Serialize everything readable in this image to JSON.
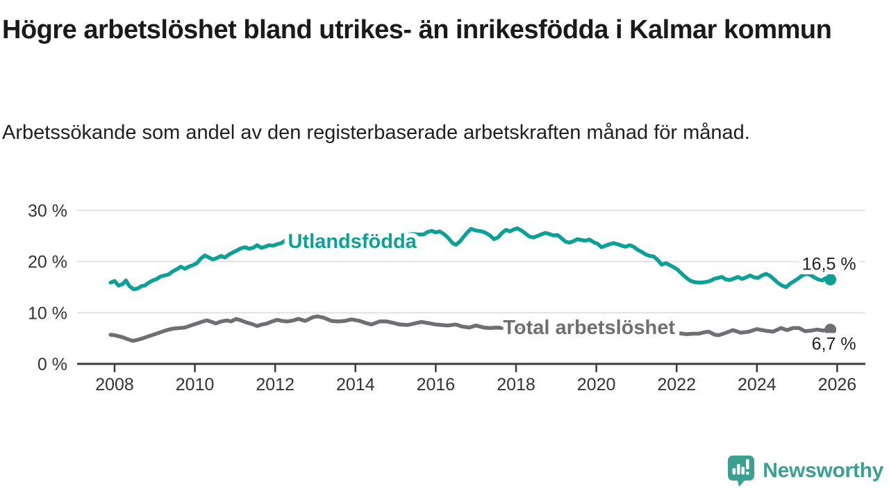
{
  "header": {
    "title": "Högre arbetslöshet bland utrikes- än inrikesfödda i Kalmar kommun",
    "subtitle": "Arbetssökande som andel av den registerbaserade arbetskraften månad för månad."
  },
  "branding": {
    "wordmark": "Newsworthy",
    "logo_icon": "bar-chart-exclamation-speech-bubble-icon",
    "color": "#3aa192"
  },
  "colors": {
    "series_foreign_born": "#0da096",
    "series_total": "#6f6f73",
    "gridline": "#e1e1e1",
    "axis": "#3c3c3c",
    "tick_label": "#333333",
    "value_label": "#1f1f1f"
  },
  "chart_data": {
    "type": "line",
    "title": "Högre arbetslöshet bland utrikes- än inrikesfödda i Kalmar kommun",
    "subtitle": "Arbetssökande som andel av den registerbaserade arbetskraften månad för månad.",
    "unit": "%",
    "grid": "horizontal",
    "legend_position": "inline-labels",
    "xlim": [
      2007.6,
      2026.7
    ],
    "ylim": [
      0,
      32
    ],
    "x_ticks": [
      2008,
      2010,
      2012,
      2014,
      2016,
      2018,
      2020,
      2022,
      2024,
      2026
    ],
    "x_tick_labels": [
      "2008",
      "2010",
      "2012",
      "2014",
      "2016",
      "2018",
      "2020",
      "2022",
      "2024",
      "2026"
    ],
    "y_ticks": [
      0,
      10,
      20,
      30
    ],
    "y_tick_labels": [
      "0 %",
      "10 %",
      "20 %",
      "30 %"
    ],
    "series": [
      {
        "name": "Utlandsfödda",
        "color": "#0da096",
        "inline_label": {
          "text": "Utlandsfödda",
          "x": 2013.92,
          "y": 24.0
        },
        "end_label": "16,5 %",
        "end_value": 16.5,
        "end_label_position": "above",
        "points": [
          [
            2007.9,
            15.9
          ],
          [
            2008.0,
            16.2
          ],
          [
            2008.1,
            15.3
          ],
          [
            2008.2,
            15.6
          ],
          [
            2008.28,
            16.3
          ],
          [
            2008.37,
            15.2
          ],
          [
            2008.47,
            14.6
          ],
          [
            2008.57,
            14.7
          ],
          [
            2008.67,
            15.2
          ],
          [
            2008.75,
            15.3
          ],
          [
            2008.85,
            15.9
          ],
          [
            2008.95,
            16.3
          ],
          [
            2009.05,
            16.6
          ],
          [
            2009.15,
            17.1
          ],
          [
            2009.25,
            17.3
          ],
          [
            2009.35,
            17.5
          ],
          [
            2009.45,
            18.1
          ],
          [
            2009.55,
            18.5
          ],
          [
            2009.65,
            19.0
          ],
          [
            2009.75,
            18.6
          ],
          [
            2009.85,
            19.0
          ],
          [
            2009.95,
            19.3
          ],
          [
            2010.05,
            19.7
          ],
          [
            2010.15,
            20.6
          ],
          [
            2010.25,
            21.2
          ],
          [
            2010.35,
            20.8
          ],
          [
            2010.45,
            20.4
          ],
          [
            2010.55,
            20.7
          ],
          [
            2010.65,
            21.1
          ],
          [
            2010.75,
            20.8
          ],
          [
            2010.85,
            21.4
          ],
          [
            2010.95,
            21.8
          ],
          [
            2011.05,
            22.2
          ],
          [
            2011.15,
            22.6
          ],
          [
            2011.25,
            22.8
          ],
          [
            2011.35,
            22.5
          ],
          [
            2011.45,
            22.7
          ],
          [
            2011.55,
            23.2
          ],
          [
            2011.65,
            22.7
          ],
          [
            2011.75,
            22.9
          ],
          [
            2011.85,
            23.2
          ],
          [
            2011.95,
            23.1
          ],
          [
            2012.05,
            23.4
          ],
          [
            2012.15,
            23.6
          ],
          [
            2012.25,
            24.1
          ],
          [
            2012.4,
            23.9
          ],
          [
            2012.55,
            24.2
          ],
          [
            2012.7,
            24.0
          ],
          [
            2012.85,
            24.3
          ],
          [
            2013.0,
            24.5
          ],
          [
            2013.15,
            24.3
          ],
          [
            2013.3,
            24.6
          ],
          [
            2013.45,
            24.4
          ],
          [
            2013.6,
            24.7
          ],
          [
            2013.75,
            24.6
          ],
          [
            2013.9,
            24.8
          ],
          [
            2014.05,
            24.7
          ],
          [
            2014.2,
            25.0
          ],
          [
            2014.35,
            24.8
          ],
          [
            2014.5,
            25.1
          ],
          [
            2014.65,
            25.0
          ],
          [
            2014.8,
            25.2
          ],
          [
            2014.95,
            25.1
          ],
          [
            2015.1,
            25.3
          ],
          [
            2015.25,
            25.2
          ],
          [
            2015.4,
            25.4
          ],
          [
            2015.55,
            25.3
          ],
          [
            2015.7,
            25.3
          ],
          [
            2015.8,
            25.8
          ],
          [
            2015.9,
            26.0
          ],
          [
            2016.0,
            25.7
          ],
          [
            2016.1,
            25.9
          ],
          [
            2016.2,
            25.4
          ],
          [
            2016.3,
            24.7
          ],
          [
            2016.42,
            23.6
          ],
          [
            2016.5,
            23.3
          ],
          [
            2016.6,
            23.9
          ],
          [
            2016.7,
            24.9
          ],
          [
            2016.8,
            25.8
          ],
          [
            2016.88,
            26.4
          ],
          [
            2016.95,
            26.2
          ],
          [
            2017.05,
            26.0
          ],
          [
            2017.15,
            25.9
          ],
          [
            2017.25,
            25.6
          ],
          [
            2017.35,
            25.1
          ],
          [
            2017.45,
            24.4
          ],
          [
            2017.55,
            24.7
          ],
          [
            2017.65,
            25.6
          ],
          [
            2017.75,
            26.2
          ],
          [
            2017.85,
            25.9
          ],
          [
            2017.95,
            26.3
          ],
          [
            2018.03,
            26.5
          ],
          [
            2018.13,
            26.1
          ],
          [
            2018.23,
            25.5
          ],
          [
            2018.33,
            24.9
          ],
          [
            2018.43,
            24.7
          ],
          [
            2018.53,
            25.0
          ],
          [
            2018.63,
            25.3
          ],
          [
            2018.73,
            25.6
          ],
          [
            2018.83,
            25.4
          ],
          [
            2018.93,
            25.1
          ],
          [
            2019.03,
            25.2
          ],
          [
            2019.13,
            24.6
          ],
          [
            2019.23,
            23.9
          ],
          [
            2019.33,
            23.7
          ],
          [
            2019.43,
            24.0
          ],
          [
            2019.53,
            24.4
          ],
          [
            2019.63,
            24.2
          ],
          [
            2019.73,
            24.1
          ],
          [
            2019.83,
            24.3
          ],
          [
            2019.93,
            23.8
          ],
          [
            2020.03,
            23.5
          ],
          [
            2020.13,
            22.8
          ],
          [
            2020.23,
            23.1
          ],
          [
            2020.33,
            23.4
          ],
          [
            2020.43,
            23.6
          ],
          [
            2020.53,
            23.4
          ],
          [
            2020.63,
            23.1
          ],
          [
            2020.73,
            22.9
          ],
          [
            2020.83,
            23.2
          ],
          [
            2020.93,
            22.9
          ],
          [
            2021.03,
            22.3
          ],
          [
            2021.13,
            21.9
          ],
          [
            2021.23,
            21.4
          ],
          [
            2021.33,
            21.1
          ],
          [
            2021.43,
            21.0
          ],
          [
            2021.53,
            20.3
          ],
          [
            2021.63,
            19.4
          ],
          [
            2021.73,
            19.7
          ],
          [
            2021.83,
            19.3
          ],
          [
            2021.93,
            18.9
          ],
          [
            2022.03,
            18.4
          ],
          [
            2022.13,
            17.6
          ],
          [
            2022.23,
            16.9
          ],
          [
            2022.33,
            16.3
          ],
          [
            2022.43,
            16.0
          ],
          [
            2022.53,
            15.9
          ],
          [
            2022.63,
            15.9
          ],
          [
            2022.73,
            16.0
          ],
          [
            2022.83,
            16.2
          ],
          [
            2022.93,
            16.6
          ],
          [
            2023.03,
            16.8
          ],
          [
            2023.13,
            17.0
          ],
          [
            2023.23,
            16.5
          ],
          [
            2023.33,
            16.4
          ],
          [
            2023.43,
            16.7
          ],
          [
            2023.53,
            17.0
          ],
          [
            2023.63,
            16.6
          ],
          [
            2023.73,
            16.9
          ],
          [
            2023.83,
            17.3
          ],
          [
            2023.93,
            16.9
          ],
          [
            2024.03,
            16.8
          ],
          [
            2024.13,
            17.3
          ],
          [
            2024.23,
            17.6
          ],
          [
            2024.33,
            17.2
          ],
          [
            2024.43,
            16.5
          ],
          [
            2024.53,
            15.8
          ],
          [
            2024.63,
            15.3
          ],
          [
            2024.73,
            15.0
          ],
          [
            2024.83,
            15.7
          ],
          [
            2024.93,
            16.2
          ],
          [
            2025.03,
            16.7
          ],
          [
            2025.13,
            17.3
          ],
          [
            2025.23,
            17.6
          ],
          [
            2025.33,
            17.4
          ],
          [
            2025.43,
            16.9
          ],
          [
            2025.53,
            16.5
          ],
          [
            2025.63,
            16.3
          ],
          [
            2025.73,
            16.9
          ],
          [
            2025.83,
            16.5
          ]
        ]
      },
      {
        "name": "Total arbetslöshet",
        "color": "#6f6f73",
        "inline_label": {
          "text": "Total arbetslöshet",
          "x": 2019.82,
          "y": 7.2
        },
        "end_label": "6,7 %",
        "end_value": 6.7,
        "end_label_position": "below",
        "points": [
          [
            2007.9,
            5.7
          ],
          [
            2008.0,
            5.6
          ],
          [
            2008.1,
            5.4
          ],
          [
            2008.2,
            5.2
          ],
          [
            2008.3,
            4.9
          ],
          [
            2008.45,
            4.5
          ],
          [
            2008.57,
            4.7
          ],
          [
            2008.7,
            5.0
          ],
          [
            2008.85,
            5.4
          ],
          [
            2009.0,
            5.8
          ],
          [
            2009.15,
            6.2
          ],
          [
            2009.3,
            6.6
          ],
          [
            2009.45,
            6.9
          ],
          [
            2009.6,
            7.0
          ],
          [
            2009.75,
            7.1
          ],
          [
            2009.9,
            7.5
          ],
          [
            2010.05,
            7.9
          ],
          [
            2010.2,
            8.3
          ],
          [
            2010.3,
            8.5
          ],
          [
            2010.42,
            8.2
          ],
          [
            2010.52,
            7.9
          ],
          [
            2010.65,
            8.3
          ],
          [
            2010.8,
            8.5
          ],
          [
            2010.9,
            8.3
          ],
          [
            2011.03,
            8.8
          ],
          [
            2011.15,
            8.5
          ],
          [
            2011.28,
            8.1
          ],
          [
            2011.42,
            7.8
          ],
          [
            2011.55,
            7.4
          ],
          [
            2011.67,
            7.7
          ],
          [
            2011.8,
            7.9
          ],
          [
            2011.92,
            8.3
          ],
          [
            2012.05,
            8.6
          ],
          [
            2012.17,
            8.4
          ],
          [
            2012.3,
            8.3
          ],
          [
            2012.45,
            8.5
          ],
          [
            2012.58,
            8.8
          ],
          [
            2012.75,
            8.4
          ],
          [
            2012.93,
            9.1
          ],
          [
            2013.05,
            9.3
          ],
          [
            2013.22,
            9.0
          ],
          [
            2013.4,
            8.4
          ],
          [
            2013.57,
            8.3
          ],
          [
            2013.74,
            8.4
          ],
          [
            2013.9,
            8.7
          ],
          [
            2014.1,
            8.4
          ],
          [
            2014.26,
            8.0
          ],
          [
            2014.4,
            7.7
          ],
          [
            2014.6,
            8.3
          ],
          [
            2014.78,
            8.3
          ],
          [
            2014.95,
            8.0
          ],
          [
            2015.1,
            7.7
          ],
          [
            2015.3,
            7.6
          ],
          [
            2015.47,
            7.9
          ],
          [
            2015.64,
            8.2
          ],
          [
            2015.8,
            8.0
          ],
          [
            2016.0,
            7.7
          ],
          [
            2016.15,
            7.6
          ],
          [
            2016.3,
            7.5
          ],
          [
            2016.5,
            7.7
          ],
          [
            2016.66,
            7.3
          ],
          [
            2016.83,
            7.1
          ],
          [
            2017.0,
            7.5
          ],
          [
            2017.2,
            7.1
          ],
          [
            2017.35,
            7.0
          ],
          [
            2017.5,
            7.1
          ],
          [
            2017.7,
            7.0
          ],
          [
            2017.9,
            7.1
          ],
          [
            2018.1,
            7.2
          ],
          [
            2018.3,
            6.9
          ],
          [
            2018.5,
            6.7
          ],
          [
            2018.7,
            6.8
          ],
          [
            2018.9,
            7.0
          ],
          [
            2019.1,
            7.1
          ],
          [
            2019.3,
            6.8
          ],
          [
            2019.5,
            6.6
          ],
          [
            2019.7,
            6.7
          ],
          [
            2019.9,
            6.9
          ],
          [
            2020.1,
            7.3
          ],
          [
            2020.3,
            7.9
          ],
          [
            2020.5,
            8.0
          ],
          [
            2020.7,
            7.8
          ],
          [
            2020.9,
            7.5
          ],
          [
            2021.1,
            7.2
          ],
          [
            2021.3,
            6.9
          ],
          [
            2021.5,
            6.6
          ],
          [
            2021.7,
            6.4
          ],
          [
            2021.9,
            6.2
          ],
          [
            2022.05,
            6.0
          ],
          [
            2022.15,
            5.9
          ],
          [
            2022.25,
            5.8
          ],
          [
            2022.4,
            5.9
          ],
          [
            2022.55,
            5.9
          ],
          [
            2022.7,
            6.2
          ],
          [
            2022.8,
            6.3
          ],
          [
            2022.95,
            5.7
          ],
          [
            2023.05,
            5.6
          ],
          [
            2023.2,
            6.0
          ],
          [
            2023.4,
            6.6
          ],
          [
            2023.6,
            6.1
          ],
          [
            2023.8,
            6.3
          ],
          [
            2024.0,
            6.8
          ],
          [
            2024.2,
            6.5
          ],
          [
            2024.4,
            6.3
          ],
          [
            2024.6,
            7.0
          ],
          [
            2024.75,
            6.6
          ],
          [
            2024.9,
            7.0
          ],
          [
            2025.05,
            7.0
          ],
          [
            2025.2,
            6.4
          ],
          [
            2025.35,
            6.5
          ],
          [
            2025.5,
            6.7
          ],
          [
            2025.65,
            6.5
          ],
          [
            2025.75,
            6.7
          ],
          [
            2025.83,
            6.7
          ]
        ]
      }
    ]
  }
}
